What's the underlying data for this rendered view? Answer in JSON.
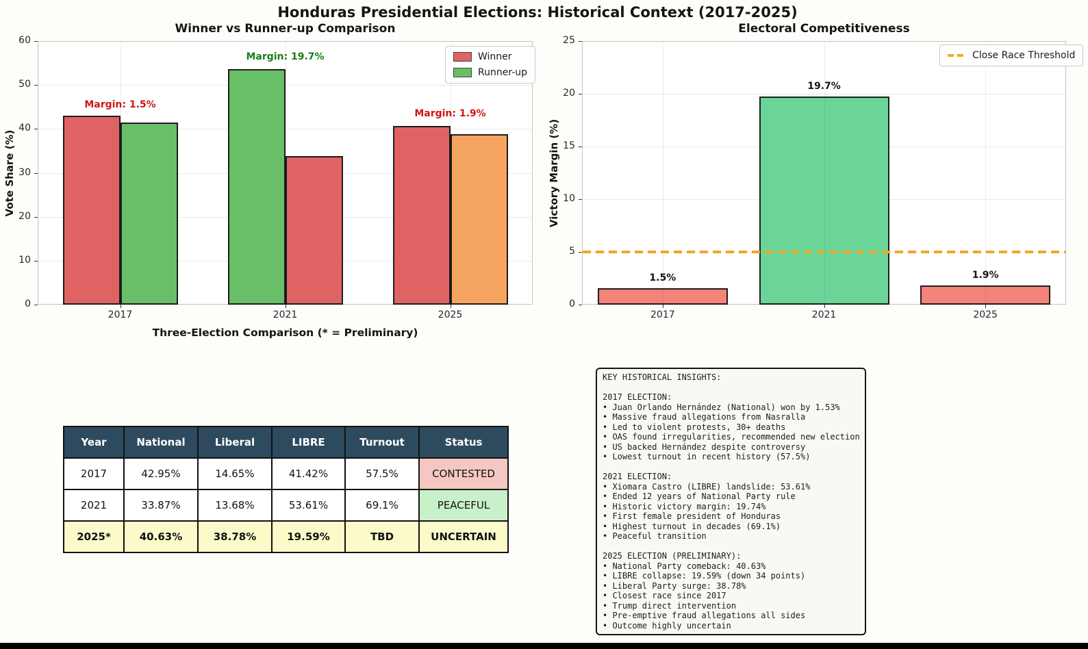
{
  "figure": {
    "title": "Honduras Presidential Elections: Historical Context (2017-2025)"
  },
  "chart_data": [
    {
      "type": "bar",
      "title": "Winner vs Runner-up Comparison",
      "xlabel": "Three-Election Comparison (* = Preliminary)",
      "ylabel": "Vote Share (%)",
      "ylim": [
        0,
        60
      ],
      "yticks": [
        0,
        10,
        20,
        30,
        40,
        50,
        60
      ],
      "categories": [
        "2017",
        "2021",
        "2025"
      ],
      "series": [
        {
          "name": "Winner",
          "values": [
            42.95,
            53.61,
            40.63
          ],
          "bar_colors": [
            "#e06363",
            "#68bf67",
            "#e06363"
          ]
        },
        {
          "name": "Runner-up",
          "values": [
            41.42,
            33.87,
            38.78
          ],
          "bar_colors": [
            "#68bf67",
            "#e06363",
            "#f5a55f"
          ]
        }
      ],
      "legend": {
        "position": "upper-right",
        "entries": [
          {
            "label": "Winner",
            "color": "#e06363",
            "dashed": false
          },
          {
            "label": "Runner-up",
            "color": "#68bf67",
            "dashed": false
          }
        ]
      },
      "annotations": [
        {
          "text": "Margin: 1.5%",
          "color": "#d21414",
          "category": "2017",
          "y": 45.4
        },
        {
          "text": "Margin: 19.7%",
          "color": "#177d17",
          "category": "2021",
          "y": 56.3
        },
        {
          "text": "Margin: 1.9%",
          "color": "#d21414",
          "category": "2025",
          "y": 43.3
        }
      ],
      "grid": true
    },
    {
      "type": "bar",
      "title": "Electoral Competitiveness",
      "xlabel": "",
      "ylabel": "Victory Margin (%)",
      "ylim": [
        0,
        25
      ],
      "yticks": [
        0,
        5,
        10,
        15,
        20,
        25
      ],
      "categories": [
        "2017",
        "2021",
        "2025"
      ],
      "values": [
        1.53,
        19.74,
        1.85
      ],
      "bar_labels": [
        "1.5%",
        "19.7%",
        "1.9%"
      ],
      "bar_colors": [
        "#f4837a",
        "#6bd598",
        "#f4837a"
      ],
      "threshold": {
        "value": 5,
        "label": "Close Race Threshold",
        "color": "#f3a71f",
        "style": "dashed"
      },
      "legend": {
        "position": "upper-right",
        "entries": [
          {
            "label": "Close Race Threshold",
            "color": "#f3a71f",
            "dashed": true
          }
        ]
      },
      "grid": true
    }
  ],
  "table": {
    "headers": [
      "Year",
      "National",
      "Liberal",
      "LIBRE",
      "Turnout",
      "Status"
    ],
    "rows": [
      {
        "cells": [
          "2017",
          "42.95%",
          "14.65%",
          "41.42%",
          "57.5%",
          "CONTESTED"
        ],
        "row_color": "#ffffff",
        "status_color": "#f4c7c3",
        "bold": false
      },
      {
        "cells": [
          "2021",
          "33.87%",
          "13.68%",
          "53.61%",
          "69.1%",
          "PEACEFUL"
        ],
        "row_color": "#ffffff",
        "status_color": "#c9f1c9",
        "bold": false
      },
      {
        "cells": [
          "2025*",
          "40.63%",
          "38.78%",
          "19.59%",
          "TBD",
          "UNCERTAIN"
        ],
        "row_color": "#fbfbca",
        "status_color": "#fbfbca",
        "bold": true
      }
    ]
  },
  "insights": {
    "text": "KEY HISTORICAL INSIGHTS:\n\n2017 ELECTION:\n• Juan Orlando Hernández (National) won by 1.53%\n• Massive fraud allegations from Nasralla\n• Led to violent protests, 30+ deaths\n• OAS found irregularities, recommended new election\n• US backed Hernández despite controversy\n• Lowest turnout in recent history (57.5%)\n\n2021 ELECTION:\n• Xiomara Castro (LIBRE) landslide: 53.61%\n• Ended 12 years of National Party rule\n• Historic victory margin: 19.74%\n• First female president of Honduras\n• Highest turnout in decades (69.1%)\n• Peaceful transition\n\n2025 ELECTION (PRELIMINARY):\n• National Party comeback: 40.63%\n• LIBRE collapse: 19.59% (down 34 points)\n• Liberal Party surge: 38.78%\n• Closest race since 2017\n• Trump direct intervention\n• Pre-emptive fraud allegations all sides\n• Outcome highly uncertain"
  }
}
